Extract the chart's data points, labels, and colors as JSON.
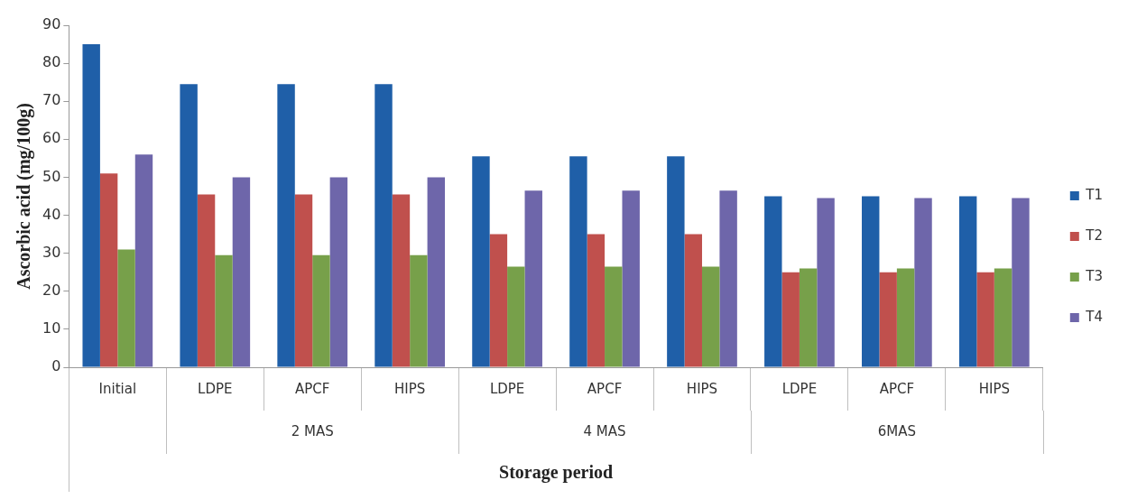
{
  "chart_data": {
    "type": "bar",
    "xlabel": "Storage period",
    "ylabel": "Ascorbic acid (mg/100g)",
    "categories": [
      "Initial",
      "LDPE",
      "APCF",
      "HIPS",
      "LDPE",
      "APCF",
      "HIPS",
      "LDPE",
      "APCF",
      "HIPS"
    ],
    "series": [
      {
        "name": "T1",
        "color": "#1f5fa8",
        "values": [
          85,
          74.5,
          74.5,
          74.5,
          55.5,
          55.5,
          55.5,
          45,
          45,
          45
        ]
      },
      {
        "name": "T2",
        "color": "#c0504d",
        "values": [
          51,
          45.5,
          45.5,
          45.5,
          35,
          35,
          35,
          25,
          25,
          25
        ]
      },
      {
        "name": "T3",
        "color": "#77a04a",
        "values": [
          31,
          29.5,
          29.5,
          29.5,
          26.5,
          26.5,
          26.5,
          26,
          26,
          26
        ]
      },
      {
        "name": "T4",
        "color": "#6e66aa",
        "values": [
          56,
          50,
          50,
          50,
          46.5,
          46.5,
          46.5,
          44.5,
          44.5,
          44.5
        ]
      }
    ],
    "ylim": [
      0,
      90
    ],
    "yticks": [
      0,
      10,
      20,
      30,
      40,
      50,
      60,
      70,
      80,
      90
    ],
    "grid": false,
    "legend": "right",
    "annotations": [
      "2 MAS",
      "4 MAS",
      "6MAS"
    ]
  }
}
